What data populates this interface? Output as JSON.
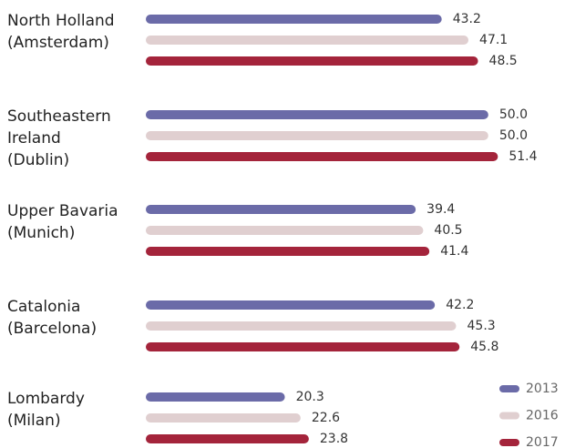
{
  "chart_data": {
    "type": "bar",
    "orientation": "horizontal",
    "categories": [
      [
        "North Holland",
        "(Amsterdam)"
      ],
      [
        "Southeastern",
        "Ireland",
        "(Dublin)"
      ],
      [
        "Upper Bavaria",
        "(Munich)"
      ],
      [
        "Catalonia",
        "(Barcelona)"
      ],
      [
        "Lombardy",
        "(Milan)"
      ]
    ],
    "series": [
      {
        "name": "2013",
        "color": "#6b6ba8",
        "values": [
          43.2,
          50.0,
          39.4,
          42.2,
          20.3
        ],
        "value_labels": [
          "43.2",
          "50.0",
          "39.4",
          "42.2",
          "20.3"
        ]
      },
      {
        "name": "2016",
        "color": "#e0cfd0",
        "values": [
          47.1,
          50.0,
          40.5,
          45.3,
          22.6
        ],
        "value_labels": [
          "47.1",
          "50.0",
          "40.5",
          "45.3",
          "22.6"
        ]
      },
      {
        "name": "2017",
        "color": "#a4243b",
        "values": [
          48.5,
          51.4,
          41.4,
          45.8,
          23.8
        ],
        "value_labels": [
          "48.5",
          "51.4",
          "41.4",
          "45.8",
          "23.8"
        ]
      }
    ],
    "xlim": [
      0,
      60
    ],
    "legend": "bottom-right"
  }
}
